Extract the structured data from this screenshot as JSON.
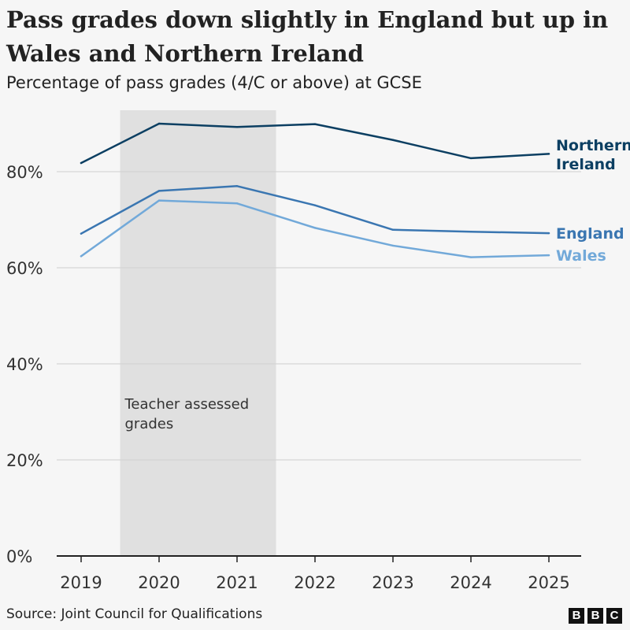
{
  "title": "Pass grades down slightly in England but up in Wales and Northern Ireland",
  "subtitle": "Percentage of pass grades (4/C or above) at GCSE",
  "source": "Source: Joint Council for Qualifications",
  "logo": [
    "B",
    "B",
    "C"
  ],
  "chart_data": {
    "type": "line",
    "x": [
      "2019",
      "2020",
      "2021",
      "2022",
      "2023",
      "2024",
      "2025"
    ],
    "ylim": [
      0,
      100
    ],
    "yticks": [
      0,
      20,
      40,
      60,
      80
    ],
    "ytick_labels": [
      "0%",
      "20%",
      "40%",
      "60%",
      "80%"
    ],
    "grid": true,
    "shaded_region": {
      "from": "2019.5",
      "to": "2021.5",
      "label_lines": [
        "Teacher assessed",
        "grades"
      ]
    },
    "series": [
      {
        "name": "Northern Ireland",
        "label_lines": [
          "Northern",
          "Ireland"
        ],
        "color": "#0c3f62",
        "values": [
          81.8,
          90,
          89.3,
          89.9,
          86.6,
          82.8,
          83.7
        ]
      },
      {
        "name": "England",
        "label_lines": [
          "England"
        ],
        "color": "#3a76b1",
        "values": [
          67.1,
          76,
          77,
          73,
          67.9,
          67.5,
          67.2
        ]
      },
      {
        "name": "Wales",
        "label_lines": [
          "Wales"
        ],
        "color": "#72a9d9",
        "values": [
          62.4,
          74,
          73.4,
          68.3,
          64.6,
          62.2,
          62.6
        ]
      }
    ]
  }
}
